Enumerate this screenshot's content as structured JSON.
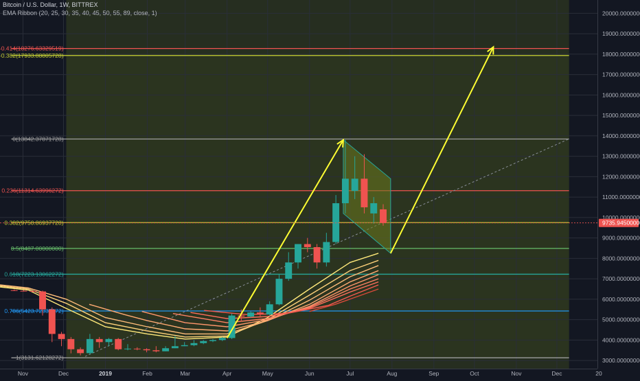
{
  "header": {
    "title": "Bitcoin / U.S. Dollar, 1W, BITTREX",
    "indicator": "EMA Ribbon (20, 25, 30, 35, 40, 45, 50, 55, 89, close, 1)"
  },
  "colors": {
    "background": "#131722",
    "up": "#26a69a",
    "down": "#ef5350",
    "arrow": "#ffff33",
    "fib_zone": "#4a5a1c",
    "channel_fill": "#6b7a1e",
    "channel_line": "#26a69a",
    "price_badge": "#ef5350"
  },
  "chart_data": {
    "type": "candlestick",
    "y_axis": {
      "min": 2600,
      "max": 20650,
      "ticks": [
        20000,
        19000,
        18000,
        17000,
        16000,
        15000,
        14000,
        13000,
        12000,
        11000,
        10000,
        9000,
        8000,
        7000,
        6000,
        5000,
        4000,
        3000
      ],
      "tick_labels": [
        "20000.00000000",
        "19000.00000000",
        "18000.00000000",
        "17000.00000000",
        "16000.00000000",
        "15000.00000000",
        "14000.00000000",
        "13000.00000000",
        "12000.00000000",
        "11000.00000000",
        "10000.00000000",
        "9000.00000000",
        "8000.00000000",
        "7000.00000000",
        "6000.00000000",
        "5000.00000000",
        "4000.00000000",
        "3000.00000000"
      ]
    },
    "x_axis": {
      "start": "2018-10-15",
      "end": "2019-12-31",
      "ticks": [
        {
          "date": "2018-11-01",
          "label": "Nov"
        },
        {
          "date": "2018-12-01",
          "label": "Dec"
        },
        {
          "date": "2019-01-01",
          "label": "2019"
        },
        {
          "date": "2019-02-01",
          "label": "Feb"
        },
        {
          "date": "2019-03-01",
          "label": "Mar"
        },
        {
          "date": "2019-04-01",
          "label": "Apr"
        },
        {
          "date": "2019-05-01",
          "label": "May"
        },
        {
          "date": "2019-06-01",
          "label": "Jun"
        },
        {
          "date": "2019-07-01",
          "label": "Jul"
        },
        {
          "date": "2019-08-01",
          "label": "Aug"
        },
        {
          "date": "2019-09-01",
          "label": "Sep"
        },
        {
          "date": "2019-10-01",
          "label": "Oct"
        },
        {
          "date": "2019-11-01",
          "label": "Nov"
        },
        {
          "date": "2019-12-01",
          "label": "Dec"
        },
        {
          "date": "2020-01-01",
          "label": "20"
        }
      ]
    },
    "candles": [
      {
        "date": "2018-10-22",
        "o": 6440,
        "h": 6480,
        "l": 6400,
        "c": 6410
      },
      {
        "date": "2018-10-29",
        "o": 6410,
        "h": 6450,
        "l": 6380,
        "c": 6400
      },
      {
        "date": "2018-11-05",
        "o": 6400,
        "h": 6430,
        "l": 6350,
        "c": 6380
      },
      {
        "date": "2018-11-12",
        "o": 6380,
        "h": 6420,
        "l": 5200,
        "c": 5500
      },
      {
        "date": "2018-11-19",
        "o": 5500,
        "h": 5600,
        "l": 3900,
        "c": 4300
      },
      {
        "date": "2018-11-26",
        "o": 4300,
        "h": 4400,
        "l": 3700,
        "c": 4050
      },
      {
        "date": "2018-12-03",
        "o": 4050,
        "h": 4150,
        "l": 3350,
        "c": 3550
      },
      {
        "date": "2018-12-10",
        "o": 3550,
        "h": 3640,
        "l": 3250,
        "c": 3360
      },
      {
        "date": "2018-12-17",
        "o": 3360,
        "h": 4300,
        "l": 3300,
        "c": 4050
      },
      {
        "date": "2018-12-24",
        "o": 4050,
        "h": 4150,
        "l": 3620,
        "c": 3900
      },
      {
        "date": "2018-12-31",
        "o": 3900,
        "h": 4100,
        "l": 3700,
        "c": 4050
      },
      {
        "date": "2019-01-07",
        "o": 4050,
        "h": 4100,
        "l": 3500,
        "c": 3550
      },
      {
        "date": "2019-01-14",
        "o": 3550,
        "h": 3800,
        "l": 3500,
        "c": 3580
      },
      {
        "date": "2019-01-21",
        "o": 3580,
        "h": 3650,
        "l": 3500,
        "c": 3550
      },
      {
        "date": "2019-01-28",
        "o": 3550,
        "h": 3600,
        "l": 3400,
        "c": 3500
      },
      {
        "date": "2019-02-04",
        "o": 3500,
        "h": 3700,
        "l": 3400,
        "c": 3450
      },
      {
        "date": "2019-02-11",
        "o": 3450,
        "h": 3700,
        "l": 3450,
        "c": 3600
      },
      {
        "date": "2019-02-18",
        "o": 3600,
        "h": 4200,
        "l": 3600,
        "c": 3700
      },
      {
        "date": "2019-02-25",
        "o": 3700,
        "h": 3900,
        "l": 3700,
        "c": 3750
      },
      {
        "date": "2019-03-04",
        "o": 3750,
        "h": 4000,
        "l": 3700,
        "c": 3850
      },
      {
        "date": "2019-03-11",
        "o": 3850,
        "h": 4000,
        "l": 3800,
        "c": 3950
      },
      {
        "date": "2019-03-18",
        "o": 3950,
        "h": 4050,
        "l": 3900,
        "c": 4000
      },
      {
        "date": "2019-03-25",
        "o": 4000,
        "h": 4150,
        "l": 3950,
        "c": 4100
      },
      {
        "date": "2019-04-01",
        "o": 4100,
        "h": 5300,
        "l": 4050,
        "c": 5200
      },
      {
        "date": "2019-04-08",
        "o": 5200,
        "h": 5500,
        "l": 4900,
        "c": 5150
      },
      {
        "date": "2019-04-15",
        "o": 5150,
        "h": 5400,
        "l": 5100,
        "c": 5350
      },
      {
        "date": "2019-04-22",
        "o": 5350,
        "h": 5600,
        "l": 5100,
        "c": 5250
      },
      {
        "date": "2019-04-29",
        "o": 5250,
        "h": 5900,
        "l": 5200,
        "c": 5750
      },
      {
        "date": "2019-05-06",
        "o": 5750,
        "h": 7200,
        "l": 5700,
        "c": 7000
      },
      {
        "date": "2019-05-13",
        "o": 7000,
        "h": 8300,
        "l": 6900,
        "c": 7800
      },
      {
        "date": "2019-05-20",
        "o": 7800,
        "h": 8700,
        "l": 7500,
        "c": 8700
      },
      {
        "date": "2019-05-27",
        "o": 8700,
        "h": 9000,
        "l": 8300,
        "c": 8550
      },
      {
        "date": "2019-06-03",
        "o": 8550,
        "h": 8700,
        "l": 7500,
        "c": 7800
      },
      {
        "date": "2019-06-10",
        "o": 7800,
        "h": 9250,
        "l": 7600,
        "c": 8800
      },
      {
        "date": "2019-06-17",
        "o": 8800,
        "h": 11100,
        "l": 8700,
        "c": 10700
      },
      {
        "date": "2019-06-24",
        "o": 10700,
        "h": 13800,
        "l": 10200,
        "c": 11900
      },
      {
        "date": "2019-07-01",
        "o": 11300,
        "h": 13000,
        "l": 10900,
        "c": 11900
      },
      {
        "date": "2019-07-08",
        "o": 11900,
        "h": 13100,
        "l": 10200,
        "c": 10500
      },
      {
        "date": "2019-07-15",
        "o": 10200,
        "h": 11000,
        "l": 9700,
        "c": 10700
      },
      {
        "date": "2019-07-22",
        "o": 10400,
        "h": 10650,
        "l": 9600,
        "c": 9736
      }
    ],
    "ema_ribbon": {
      "colors": [
        "#ffe97a",
        "#ffd27a",
        "#ffbe7a",
        "#ffaa72",
        "#ff966b",
        "#ff8263",
        "#ff6e5c",
        "#f45a50",
        "#d84a3a"
      ],
      "series": [
        {
          "values": [
            {
              "date": "2018-10-15",
              "y": 6600
            },
            {
              "date": "2018-11-05",
              "y": 6450
            },
            {
              "date": "2018-12-03",
              "y": 5550
            },
            {
              "date": "2019-01-01",
              "y": 4650
            },
            {
              "date": "2019-02-01",
              "y": 4300
            },
            {
              "date": "2019-03-01",
              "y": 4050
            },
            {
              "date": "2019-04-01",
              "y": 4150
            },
            {
              "date": "2019-05-01",
              "y": 5100
            },
            {
              "date": "2019-06-01",
              "y": 6500
            },
            {
              "date": "2019-07-01",
              "y": 7800
            },
            {
              "date": "2019-07-22",
              "y": 8250
            }
          ]
        },
        {
          "values": [
            {
              "date": "2018-10-15",
              "y": 6650
            },
            {
              "date": "2018-11-05",
              "y": 6500
            },
            {
              "date": "2018-12-03",
              "y": 5800
            },
            {
              "date": "2019-01-01",
              "y": 4850
            },
            {
              "date": "2019-02-01",
              "y": 4450
            },
            {
              "date": "2019-03-01",
              "y": 4150
            },
            {
              "date": "2019-04-01",
              "y": 4200
            },
            {
              "date": "2019-05-01",
              "y": 5000
            },
            {
              "date": "2019-06-01",
              "y": 6200
            },
            {
              "date": "2019-07-01",
              "y": 7400
            },
            {
              "date": "2019-07-22",
              "y": 7900
            }
          ]
        },
        {
          "values": [
            {
              "date": "2018-10-15",
              "y": 6700
            },
            {
              "date": "2018-11-05",
              "y": 6550
            },
            {
              "date": "2018-12-03",
              "y": 6000
            },
            {
              "date": "2019-01-01",
              "y": 5100
            },
            {
              "date": "2019-02-01",
              "y": 4650
            },
            {
              "date": "2019-03-01",
              "y": 4300
            },
            {
              "date": "2019-04-01",
              "y": 4300
            },
            {
              "date": "2019-05-01",
              "y": 4950
            },
            {
              "date": "2019-06-01",
              "y": 5950
            },
            {
              "date": "2019-07-01",
              "y": 7100
            },
            {
              "date": "2019-07-22",
              "y": 7650
            }
          ]
        },
        {
          "values": [
            {
              "date": "2018-12-20",
              "y": 5750
            },
            {
              "date": "2019-01-15",
              "y": 5250
            },
            {
              "date": "2019-02-01",
              "y": 4950
            },
            {
              "date": "2019-03-01",
              "y": 4550
            },
            {
              "date": "2019-04-01",
              "y": 4450
            },
            {
              "date": "2019-05-01",
              "y": 4950
            },
            {
              "date": "2019-06-01",
              "y": 5750
            },
            {
              "date": "2019-07-01",
              "y": 6850
            },
            {
              "date": "2019-07-22",
              "y": 7400
            }
          ]
        },
        {
          "values": [
            {
              "date": "2019-01-28",
              "y": 5400
            },
            {
              "date": "2019-03-01",
              "y": 4850
            },
            {
              "date": "2019-04-01",
              "y": 4650
            },
            {
              "date": "2019-05-01",
              "y": 5000
            },
            {
              "date": "2019-06-01",
              "y": 5650
            },
            {
              "date": "2019-07-01",
              "y": 6650
            },
            {
              "date": "2019-07-22",
              "y": 7200
            }
          ]
        },
        {
          "values": [
            {
              "date": "2019-02-20",
              "y": 5300
            },
            {
              "date": "2019-04-01",
              "y": 4850
            },
            {
              "date": "2019-05-01",
              "y": 5050
            },
            {
              "date": "2019-06-01",
              "y": 5600
            },
            {
              "date": "2019-07-01",
              "y": 6500
            },
            {
              "date": "2019-07-22",
              "y": 7000
            }
          ]
        },
        {
          "values": [
            {
              "date": "2019-03-05",
              "y": 5350
            },
            {
              "date": "2019-04-01",
              "y": 5050
            },
            {
              "date": "2019-05-01",
              "y": 5150
            },
            {
              "date": "2019-06-01",
              "y": 5550
            },
            {
              "date": "2019-07-01",
              "y": 6350
            },
            {
              "date": "2019-07-22",
              "y": 6850
            }
          ]
        },
        {
          "values": [
            {
              "date": "2019-03-15",
              "y": 5450
            },
            {
              "date": "2019-04-15",
              "y": 5250
            },
            {
              "date": "2019-05-15",
              "y": 5300
            },
            {
              "date": "2019-06-15",
              "y": 5700
            },
            {
              "date": "2019-07-01",
              "y": 6150
            },
            {
              "date": "2019-07-22",
              "y": 6700
            }
          ]
        },
        {
          "values": [
            {
              "date": "2019-06-01",
              "y": 5400
            },
            {
              "date": "2019-06-20",
              "y": 5750
            },
            {
              "date": "2019-07-05",
              "y": 6100
            },
            {
              "date": "2019-07-22",
              "y": 6500
            }
          ]
        }
      ]
    },
    "fib_zone": {
      "start": "2018-12-03",
      "end": "2019-12-10"
    },
    "fib_levels": [
      {
        "label": "-0.414(18276.63329519)",
        "value": 18276.63,
        "color": "#ef5350"
      },
      {
        "label": "-0.382(17933.88805728)",
        "value": 17933.89,
        "color": "#c0ca33"
      },
      {
        "label": "0(13842.37871728)",
        "value": 13842.38,
        "color": "#9e9e9e"
      },
      {
        "label": "0.236(11314.63996272)",
        "value": 11314.64,
        "color": "#ef5350"
      },
      {
        "label": "0.382(9750.86937728)",
        "value": 9750.87,
        "color": "#c0ca33"
      },
      {
        "label": "0.5(8487.00000000)",
        "value": 8487.0,
        "color": "#66bb6a"
      },
      {
        "label": "0.618(7223.13062272)",
        "value": 7223.13,
        "color": "#26a69a"
      },
      {
        "label": "0.786(5423.72337372)",
        "value": 5423.72,
        "color": "#2196f3"
      },
      {
        "label": "1(3131.62128272)",
        "value": 3131.62,
        "color": "#9e9e9e"
      }
    ],
    "channel": [
      {
        "date": "2019-06-26",
        "y": 13800
      },
      {
        "date": "2019-07-31",
        "y": 11900
      },
      {
        "date": "2019-07-31",
        "y": 8250
      },
      {
        "date": "2019-06-26",
        "y": 10200
      }
    ],
    "arrows": [
      {
        "from": {
          "date": "2019-04-01",
          "y": 4100
        },
        "to": {
          "date": "2019-06-26",
          "y": 13800
        }
      },
      {
        "from": {
          "date": "2019-07-31",
          "y": 8250
        },
        "to": {
          "date": "2019-10-15",
          "y": 18350
        }
      }
    ],
    "trendline": {
      "from": {
        "date": "2018-12-17",
        "y": 3200
      },
      "to": {
        "date": "2019-12-10",
        "y": 13850
      }
    },
    "last_price": {
      "value": 9735.945,
      "label": "9735.94500000"
    }
  }
}
